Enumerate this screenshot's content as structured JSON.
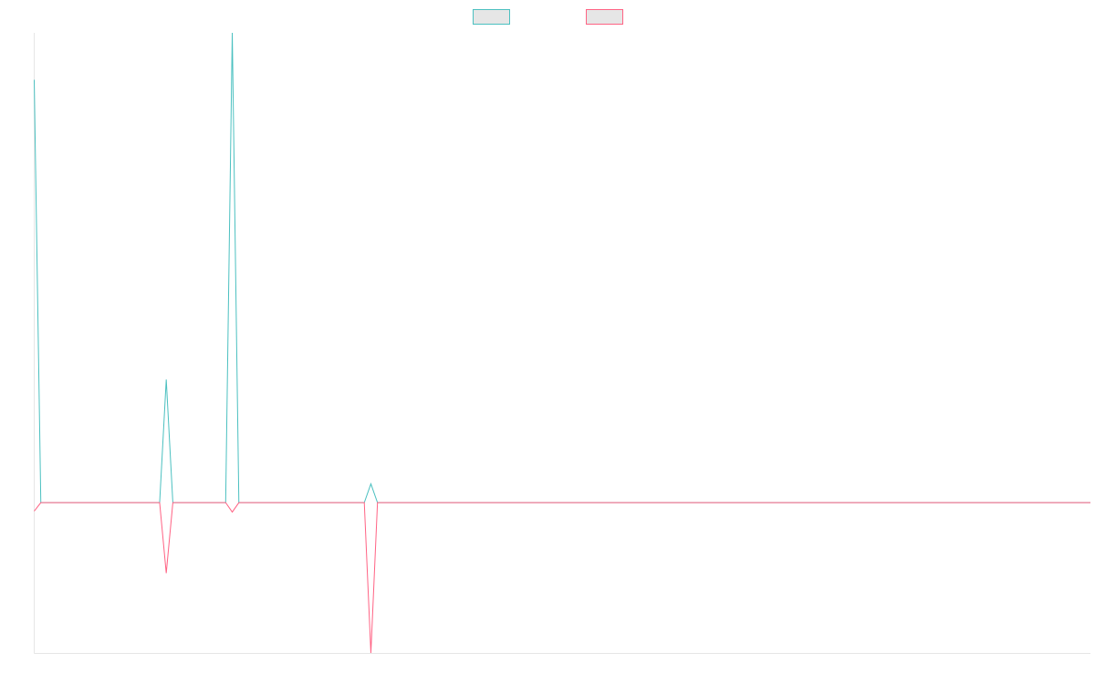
{
  "chart_data": {
    "type": "line",
    "title": "",
    "xlabel": "",
    "ylabel": "",
    "grid": false,
    "legend": {
      "placement": "top-center",
      "entries": [
        {
          "label": "",
          "color": "#4bc0c0"
        },
        {
          "label": "",
          "color": "#ff6384"
        }
      ]
    },
    "series": [
      {
        "color": "#4bc0c0",
        "values": [
          0.9,
          0,
          0,
          0,
          0,
          0,
          0,
          0,
          0,
          0,
          0,
          0,
          0,
          0,
          0,
          0,
          0,
          0,
          0,
          0,
          0.262,
          0,
          0,
          0,
          0,
          0,
          0,
          0,
          0,
          0,
          1,
          0,
          0,
          0,
          0,
          0,
          0,
          0,
          0,
          0,
          0,
          0,
          0,
          0,
          0,
          0,
          0,
          0,
          0,
          0,
          0,
          0.04,
          0,
          0,
          0,
          0,
          0,
          0,
          0,
          0,
          0,
          0,
          0,
          0,
          0,
          0,
          0,
          0,
          0,
          0,
          0,
          0,
          0,
          0,
          0,
          0,
          0,
          0,
          0,
          0,
          0,
          0,
          0,
          0,
          0,
          0,
          0,
          0,
          0,
          0,
          0,
          0,
          0,
          0,
          0,
          0,
          0,
          0,
          0,
          0,
          0,
          0,
          0,
          0,
          0,
          0,
          0,
          0,
          0,
          0,
          0,
          0,
          0,
          0,
          0,
          0,
          0,
          0,
          0,
          0,
          0,
          0,
          0,
          0,
          0,
          0,
          0,
          0,
          0,
          0,
          0,
          0,
          0,
          0,
          0,
          0,
          0,
          0,
          0,
          0,
          0,
          0,
          0,
          0,
          0,
          0,
          0,
          0,
          0,
          0,
          0,
          0,
          0,
          0,
          0,
          0,
          0,
          0,
          0,
          0,
          0
        ]
      },
      {
        "color": "#ff6384",
        "values": [
          -0.018,
          0,
          0,
          0,
          0,
          0,
          0,
          0,
          0,
          0,
          0,
          0,
          0,
          0,
          0,
          0,
          0,
          0,
          0,
          0,
          -0.15,
          0,
          0,
          0,
          0,
          0,
          0,
          0,
          0,
          0,
          -0.02,
          0,
          0,
          0,
          0,
          0,
          0,
          0,
          0,
          0,
          0,
          0,
          0,
          0,
          0,
          0,
          0,
          0,
          0,
          0,
          0,
          -0.32,
          0,
          0,
          0,
          0,
          0,
          0,
          0,
          0,
          0,
          0,
          0,
          0,
          0,
          0,
          0,
          0,
          0,
          0,
          0,
          0,
          0,
          0,
          0,
          0,
          0,
          0,
          0,
          0,
          0,
          0,
          0,
          0,
          0,
          0,
          0,
          0,
          0,
          0,
          0,
          0,
          0,
          0,
          0,
          0,
          0,
          0,
          0,
          0,
          0,
          0,
          0,
          0,
          0,
          0,
          0,
          0,
          0,
          0,
          0,
          0,
          0,
          0,
          0,
          0,
          0,
          0,
          0,
          0,
          0,
          0,
          0,
          0,
          0,
          0,
          0,
          0,
          0,
          0,
          0,
          0,
          0,
          0,
          0,
          0,
          0,
          0,
          0,
          0,
          0,
          0,
          0,
          0,
          0,
          0,
          0,
          0,
          0,
          0,
          0,
          0,
          0,
          0,
          0,
          0,
          0,
          0,
          0,
          0,
          0
        ]
      }
    ],
    "ylim": [
      -0.32,
      1.0
    ]
  }
}
